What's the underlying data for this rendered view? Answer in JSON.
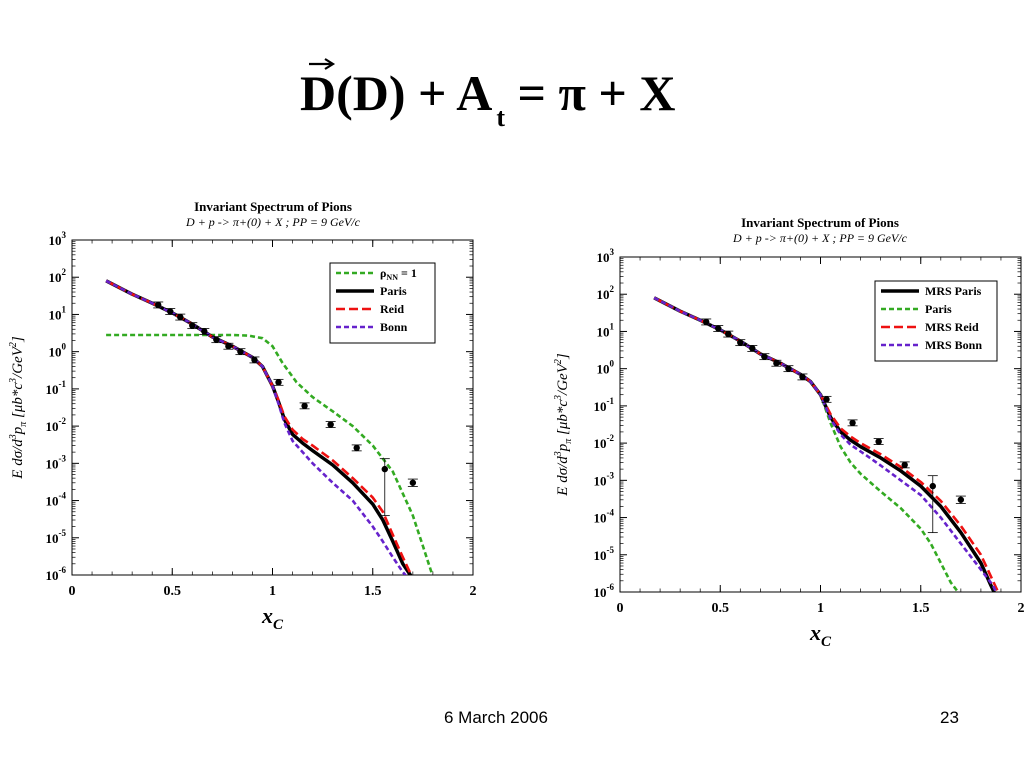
{
  "slide": {
    "title": {
      "main": "D(D) + A",
      "subscript": "t",
      "rest": " = π + X"
    },
    "footer_date": "6 March 2006",
    "page_number": "23"
  },
  "chart_data": [
    {
      "type": "line",
      "title": "Invariant Spectrum of Pions",
      "subtitle": "D + p -> π+(0) + X ;  PP = 9 GeV/c",
      "xlabel": "xC",
      "ylabel": "E dσ/d3pπ [μb*c3/GeV2]",
      "xlim": [
        0,
        2
      ],
      "ylim_log10": [
        -6,
        3
      ],
      "y_scale": "log",
      "x_ticks": [
        "0",
        "0.5",
        "1",
        "1.5",
        "2"
      ],
      "y_tick_exponents": [
        "3",
        "2",
        "1",
        "0",
        "-1",
        "-2",
        "-3",
        "-4",
        "-5",
        "-6"
      ],
      "legend_position": "top-right",
      "series": [
        {
          "name": "ρNN = 1",
          "color": "#33aa22",
          "style": "dashed",
          "x": [
            0.17,
            0.3,
            0.5,
            0.7,
            0.8,
            0.88,
            0.95,
            1.0,
            1.05,
            1.12,
            1.2,
            1.3,
            1.4,
            1.5,
            1.6,
            1.7,
            1.75,
            1.8
          ],
          "y": [
            2.8,
            2.8,
            2.8,
            2.8,
            2.8,
            2.7,
            2.3,
            1.4,
            0.5,
            0.15,
            0.06,
            0.025,
            0.01,
            0.003,
            0.0006,
            4e-05,
            6e-06,
            9e-07
          ]
        },
        {
          "name": "Paris",
          "color": "#000000",
          "style": "solid",
          "x": [
            0.17,
            0.3,
            0.4,
            0.5,
            0.6,
            0.7,
            0.8,
            0.9,
            0.95,
            1.0,
            1.03,
            1.06,
            1.1,
            1.15,
            1.2,
            1.3,
            1.4,
            1.5,
            1.55,
            1.6,
            1.65,
            1.7
          ],
          "y": [
            80,
            35,
            20,
            11,
            5.5,
            2.5,
            1.4,
            0.7,
            0.4,
            0.12,
            0.045,
            0.015,
            0.006,
            0.0035,
            0.0022,
            0.0009,
            0.0003,
            8e-05,
            3e-05,
            8e-06,
            2e-06,
            8e-07
          ]
        },
        {
          "name": "Reid",
          "color": "#ee1111",
          "style": "dashed",
          "x": [
            0.17,
            0.3,
            0.4,
            0.5,
            0.6,
            0.7,
            0.8,
            0.9,
            0.95,
            1.0,
            1.03,
            1.06,
            1.1,
            1.15,
            1.2,
            1.3,
            1.4,
            1.5,
            1.55,
            1.6,
            1.65,
            1.7
          ],
          "y": [
            80,
            35,
            20,
            11,
            5.5,
            2.5,
            1.4,
            0.7,
            0.4,
            0.12,
            0.05,
            0.018,
            0.008,
            0.0045,
            0.003,
            0.0012,
            0.0004,
            0.00012,
            5e-05,
            1.2e-05,
            3e-06,
            8e-07
          ]
        },
        {
          "name": "Bonn",
          "color": "#6622cc",
          "style": "dashed",
          "x": [
            0.17,
            0.3,
            0.4,
            0.5,
            0.6,
            0.7,
            0.8,
            0.9,
            0.95,
            1.0,
            1.03,
            1.06,
            1.1,
            1.15,
            1.2,
            1.3,
            1.4,
            1.5,
            1.55,
            1.6,
            1.65,
            1.7
          ],
          "y": [
            80,
            35,
            20,
            11,
            5.5,
            2.5,
            1.4,
            0.7,
            0.4,
            0.12,
            0.04,
            0.012,
            0.004,
            0.002,
            0.001,
            0.0003,
            0.0001,
            2e-05,
            8e-06,
            3e-06,
            1.2e-06,
            6e-07
          ]
        }
      ],
      "measured_points": {
        "x": [
          0.43,
          0.49,
          0.54,
          0.6,
          0.66,
          0.72,
          0.78,
          0.84,
          0.91,
          1.03,
          1.16,
          1.29,
          1.42,
          1.56,
          1.7
        ],
        "y": [
          18,
          12,
          8.5,
          5,
          3.5,
          2.1,
          1.4,
          1.0,
          0.6,
          0.15,
          0.035,
          0.011,
          0.0026,
          0.0007,
          0.0003
        ],
        "err_low_log10": [
          0.08,
          0.08,
          0.08,
          0.08,
          0.08,
          0.08,
          0.08,
          0.08,
          0.08,
          0.08,
          0.08,
          0.08,
          0.08,
          1.25,
          0.1
        ],
        "err_high_log10": [
          0.08,
          0.08,
          0.08,
          0.08,
          0.08,
          0.08,
          0.08,
          0.08,
          0.08,
          0.08,
          0.08,
          0.08,
          0.08,
          0.28,
          0.1
        ]
      }
    },
    {
      "type": "line",
      "title": "Invariant Spectrum of Pions",
      "subtitle": "D + p -> π+(0) + X ;  PP = 9 GeV/c",
      "xlabel": "xC",
      "ylabel": "E dσ/d3pπ [μb*c3/GeV2]",
      "xlim": [
        0,
        2
      ],
      "ylim_log10": [
        -6,
        3
      ],
      "y_scale": "log",
      "x_ticks": [
        "0",
        "0.5",
        "1",
        "1.5",
        "2"
      ],
      "y_tick_exponents": [
        "3",
        "2",
        "1",
        "0",
        "-1",
        "-2",
        "-3",
        "-4",
        "-5",
        "-6"
      ],
      "legend_position": "top-right",
      "series": [
        {
          "name": "MRS Paris",
          "color": "#000000",
          "style": "solid",
          "x": [
            0.17,
            0.3,
            0.4,
            0.5,
            0.6,
            0.7,
            0.8,
            0.9,
            0.95,
            1.0,
            1.05,
            1.1,
            1.15,
            1.2,
            1.3,
            1.4,
            1.5,
            1.6,
            1.7,
            1.8,
            1.85,
            1.87
          ],
          "y": [
            80,
            35,
            20,
            11,
            5.5,
            2.5,
            1.4,
            0.7,
            0.45,
            0.2,
            0.05,
            0.02,
            0.012,
            0.008,
            0.004,
            0.0018,
            0.0007,
            0.0002,
            4e-05,
            6e-06,
            1.5e-06,
            9e-07
          ]
        },
        {
          "name": "Paris",
          "color": "#33aa22",
          "style": "dashed",
          "x": [
            0.17,
            0.3,
            0.4,
            0.5,
            0.6,
            0.7,
            0.8,
            0.9,
            0.95,
            1.0,
            1.05,
            1.1,
            1.15,
            1.2,
            1.3,
            1.4,
            1.5,
            1.55,
            1.6,
            1.65,
            1.7
          ],
          "y": [
            80,
            35,
            20,
            11,
            5.5,
            2.5,
            1.4,
            0.7,
            0.45,
            0.2,
            0.035,
            0.008,
            0.003,
            0.0015,
            0.0005,
            0.00018,
            5e-05,
            2e-05,
            6e-06,
            1.8e-06,
            8e-07
          ]
        },
        {
          "name": "MRS Reid",
          "color": "#ee1111",
          "style": "dashed",
          "x": [
            0.17,
            0.3,
            0.4,
            0.5,
            0.6,
            0.7,
            0.8,
            0.9,
            0.95,
            1.0,
            1.05,
            1.1,
            1.15,
            1.2,
            1.3,
            1.4,
            1.5,
            1.6,
            1.7,
            1.8,
            1.86,
            1.89
          ],
          "y": [
            80,
            35,
            20,
            11,
            5.5,
            2.5,
            1.4,
            0.7,
            0.45,
            0.2,
            0.06,
            0.025,
            0.015,
            0.01,
            0.005,
            0.0023,
            0.0009,
            0.00028,
            6e-05,
            1e-05,
            2e-06,
            9e-07
          ]
        },
        {
          "name": "MRS Bonn",
          "color": "#6622cc",
          "style": "dashed",
          "x": [
            0.17,
            0.3,
            0.4,
            0.5,
            0.6,
            0.7,
            0.8,
            0.9,
            0.95,
            1.0,
            1.05,
            1.1,
            1.15,
            1.2,
            1.3,
            1.4,
            1.5,
            1.6,
            1.7,
            1.8,
            1.86,
            1.88
          ],
          "y": [
            80,
            35,
            20,
            11,
            5.5,
            2.5,
            1.4,
            0.7,
            0.45,
            0.2,
            0.045,
            0.017,
            0.009,
            0.006,
            0.0025,
            0.001,
            0.0004,
            0.0001,
            2e-05,
            4e-06,
            1.5e-06,
            9e-07
          ]
        }
      ],
      "measured_points": {
        "x": [
          0.43,
          0.49,
          0.54,
          0.6,
          0.66,
          0.72,
          0.78,
          0.84,
          0.91,
          1.03,
          1.16,
          1.29,
          1.42,
          1.56,
          1.7
        ],
        "y": [
          18,
          12,
          8.5,
          5,
          3.5,
          2.1,
          1.4,
          1.0,
          0.6,
          0.15,
          0.035,
          0.011,
          0.0026,
          0.0007,
          0.0003
        ],
        "err_low_log10": [
          0.08,
          0.08,
          0.08,
          0.08,
          0.08,
          0.08,
          0.08,
          0.08,
          0.08,
          0.08,
          0.08,
          0.08,
          0.08,
          1.25,
          0.1
        ],
        "err_high_log10": [
          0.08,
          0.08,
          0.08,
          0.08,
          0.08,
          0.08,
          0.08,
          0.08,
          0.08,
          0.08,
          0.08,
          0.08,
          0.08,
          0.28,
          0.1
        ]
      }
    }
  ]
}
